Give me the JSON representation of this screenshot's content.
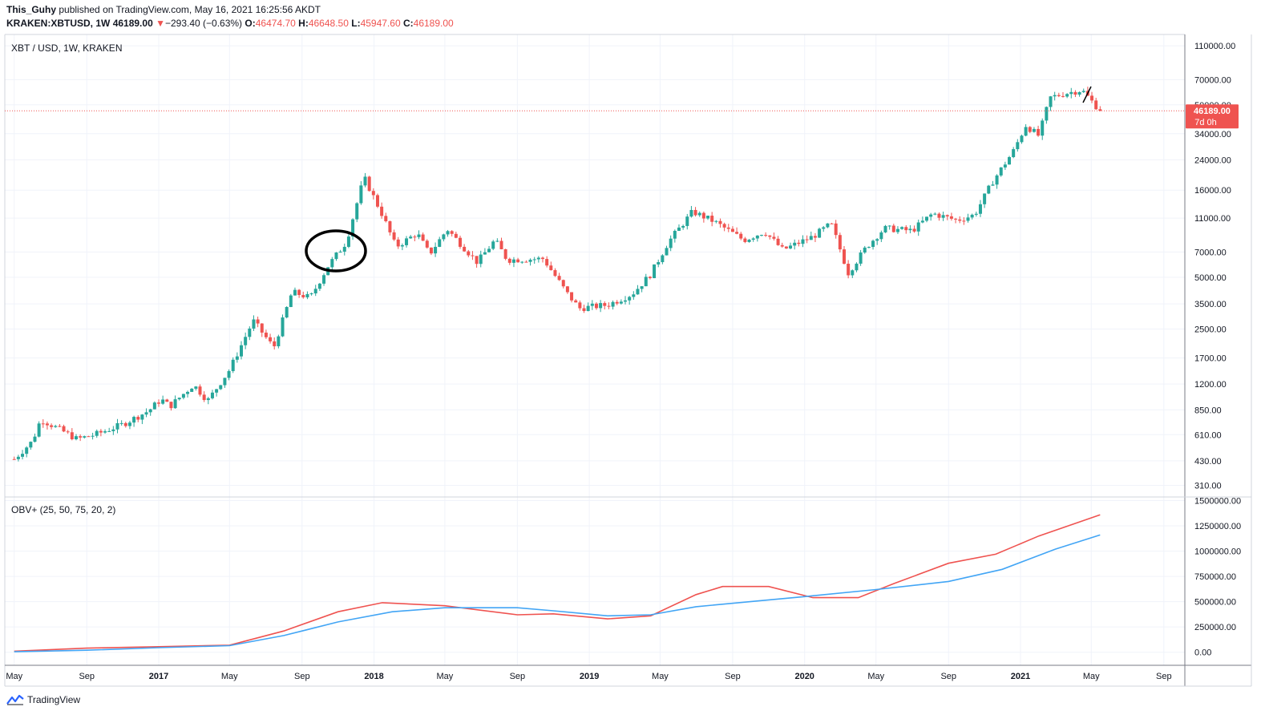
{
  "header": {
    "publisher": "This_Guhy",
    "published_text": "published on TradingView.com, May 16, 2021 16:25:56 AKDT",
    "symbol": "KRAKEN:XBTUSD, 1W",
    "last": "46189.00",
    "change_arrow": "▼",
    "change": "−293.40 (−0.63%)",
    "o_label": "O:",
    "o": "46474.70",
    "h_label": "H:",
    "h": "46648.50",
    "l_label": "L:",
    "l": "45947.60",
    "c_label": "C:",
    "c": "46189.00"
  },
  "main_pane": {
    "title": "XBT / USD, 1W, KRAKEN",
    "price_badge": "46189.00",
    "time_badge": "7d 0h",
    "y_ticks": [
      "110000.00",
      "70000.00",
      "50000.00",
      "34000.00",
      "24000.00",
      "16000.00",
      "11000.00",
      "7000.00",
      "5000.00",
      "3500.00",
      "2500.00",
      "1700.00",
      "1200.00",
      "850.00",
      "610.00",
      "430.00",
      "310.00"
    ]
  },
  "obv_pane": {
    "title": "OBV+ (25, 50, 75, 20, 2)",
    "y_ticks": [
      "1500000.00",
      "1250000.00",
      "1000000.00",
      "750000.00",
      "500000.00",
      "250000.00",
      "0.00"
    ]
  },
  "x_axis": {
    "ticks": [
      "May",
      "Sep",
      "2017",
      "May",
      "Sep",
      "2018",
      "May",
      "Sep",
      "2019",
      "May",
      "Sep",
      "2020",
      "May",
      "Sep",
      "2021",
      "May",
      "Sep"
    ],
    "bold_ticks": [
      "2017",
      "2018",
      "2019",
      "2020",
      "2021"
    ]
  },
  "footer": {
    "brand": "TradingView"
  },
  "colors": {
    "up": "#26a69a",
    "down": "#ef5350",
    "obv_fast": "#ef5350",
    "obv_slow": "#42a5f5",
    "grid": "#f0f3fa"
  },
  "chart_data": [
    {
      "type": "candlestick",
      "title": "XBT / USD, 1W, KRAKEN",
      "scale": "log",
      "ylim": [
        280,
        115000
      ],
      "x_range": [
        "2016-05",
        "2021-10"
      ],
      "last_price": 46189.0,
      "weekly_close_path": [
        [
          "2016-05-01",
          440
        ],
        [
          "2016-06-01",
          560
        ],
        [
          "2016-06-15",
          750
        ],
        [
          "2016-07-15",
          660
        ],
        [
          "2016-08-15",
          575
        ],
        [
          "2016-09-15",
          610
        ],
        [
          "2016-11-01",
          700
        ],
        [
          "2016-12-15",
          840
        ],
        [
          "2017-01-05",
          980
        ],
        [
          "2017-01-20",
          890
        ],
        [
          "2017-03-01",
          1190
        ],
        [
          "2017-03-25",
          960
        ],
        [
          "2017-05-01",
          1450
        ],
        [
          "2017-06-10",
          2800
        ],
        [
          "2017-07-15",
          1950
        ],
        [
          "2017-08-15",
          4100
        ],
        [
          "2017-09-15",
          3800
        ],
        [
          "2017-10-15",
          5800
        ],
        [
          "2017-11-15",
          8000
        ],
        [
          "2017-12-15",
          19000
        ],
        [
          "2018-01-15",
          11500
        ],
        [
          "2018-02-07",
          7500
        ],
        [
          "2018-03-15",
          9000
        ],
        [
          "2018-04-05",
          6800
        ],
        [
          "2018-05-05",
          9500
        ],
        [
          "2018-06-25",
          6100
        ],
        [
          "2018-07-25",
          8200
        ],
        [
          "2018-08-15",
          6300
        ],
        [
          "2018-10-15",
          6400
        ],
        [
          "2018-11-25",
          4000
        ],
        [
          "2018-12-15",
          3300
        ],
        [
          "2019-02-01",
          3450
        ],
        [
          "2019-03-15",
          4000
        ],
        [
          "2019-04-15",
          5200
        ],
        [
          "2019-05-15",
          8000
        ],
        [
          "2019-06-25",
          12000
        ],
        [
          "2019-08-01",
          10500
        ],
        [
          "2019-09-20",
          8200
        ],
        [
          "2019-10-25",
          9200
        ],
        [
          "2019-11-25",
          7200
        ],
        [
          "2020-01-15",
          8600
        ],
        [
          "2020-02-15",
          10200
        ],
        [
          "2020-03-15",
          5300
        ],
        [
          "2020-04-15",
          7500
        ],
        [
          "2020-05-15",
          9600
        ],
        [
          "2020-07-01",
          9300
        ],
        [
          "2020-08-05",
          11700
        ],
        [
          "2020-09-15",
          10700
        ],
        [
          "2020-10-15",
          11500
        ],
        [
          "2020-11-15",
          18000
        ],
        [
          "2020-12-20",
          27000
        ],
        [
          "2021-01-10",
          38000
        ],
        [
          "2021-02-01",
          33000
        ],
        [
          "2021-02-20",
          55000
        ],
        [
          "2021-03-15",
          58000
        ],
        [
          "2021-04-15",
          61000
        ],
        [
          "2021-05-16",
          46189
        ]
      ]
    },
    {
      "type": "line",
      "title": "OBV+ (25, 50, 75, 20, 2)",
      "ylim": [
        -50000,
        1520000
      ],
      "series": [
        {
          "color": "#ef5350",
          "points": [
            [
              "2016-05-01",
              10000
            ],
            [
              "2016-09-01",
              40000
            ],
            [
              "2017-01-01",
              55000
            ],
            [
              "2017-05-01",
              70000
            ],
            [
              "2017-08-01",
              210000
            ],
            [
              "2017-11-01",
              400000
            ],
            [
              "2018-01-15",
              490000
            ],
            [
              "2018-05-01",
              460000
            ],
            [
              "2018-09-01",
              370000
            ],
            [
              "2018-11-01",
              380000
            ],
            [
              "2019-02-01",
              330000
            ],
            [
              "2019-04-15",
              360000
            ],
            [
              "2019-07-01",
              570000
            ],
            [
              "2019-08-15",
              650000
            ],
            [
              "2019-11-01",
              650000
            ],
            [
              "2020-01-15",
              540000
            ],
            [
              "2020-04-01",
              540000
            ],
            [
              "2020-06-01",
              680000
            ],
            [
              "2020-09-01",
              880000
            ],
            [
              "2020-11-20",
              970000
            ],
            [
              "2021-02-01",
              1150000
            ],
            [
              "2021-05-16",
              1360000
            ]
          ]
        },
        {
          "color": "#42a5f5",
          "points": [
            [
              "2016-05-01",
              5000
            ],
            [
              "2016-09-01",
              20000
            ],
            [
              "2017-01-01",
              45000
            ],
            [
              "2017-05-01",
              65000
            ],
            [
              "2017-08-01",
              165000
            ],
            [
              "2017-11-01",
              300000
            ],
            [
              "2018-02-01",
              400000
            ],
            [
              "2018-05-01",
              440000
            ],
            [
              "2018-09-01",
              440000
            ],
            [
              "2018-11-01",
              410000
            ],
            [
              "2019-02-01",
              360000
            ],
            [
              "2019-04-15",
              370000
            ],
            [
              "2019-07-01",
              450000
            ],
            [
              "2019-10-01",
              500000
            ],
            [
              "2020-01-01",
              550000
            ],
            [
              "2020-05-01",
              620000
            ],
            [
              "2020-09-01",
              700000
            ],
            [
              "2020-12-01",
              820000
            ],
            [
              "2021-03-01",
              1020000
            ],
            [
              "2021-05-16",
              1160000
            ]
          ]
        }
      ]
    }
  ]
}
